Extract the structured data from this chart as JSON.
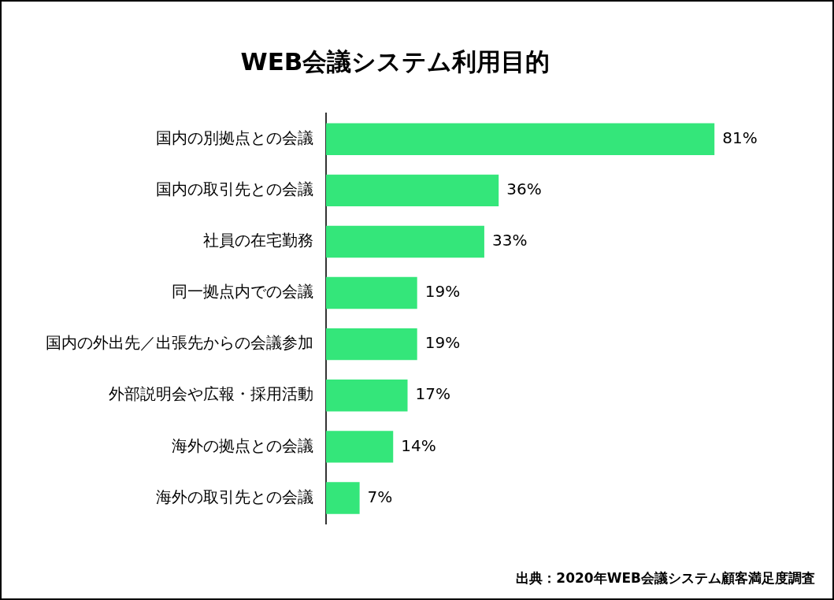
{
  "chart_data": {
    "type": "bar",
    "orientation": "horizontal",
    "title": "WEB会議システム利用目的",
    "categories": [
      "国内の別拠点との会議",
      "国内の取引先との会議",
      "社員の在宅勤務",
      "同一拠点内での会議",
      "国内の外出先／出張先からの会議参加",
      "外部説明会や広報・採用活動",
      "海外の拠点との会議",
      "海外の取引先との会議"
    ],
    "values": [
      81,
      36,
      33,
      19,
      19,
      17,
      14,
      7
    ],
    "value_labels": [
      "81%",
      "36%",
      "33%",
      "19%",
      "19%",
      "17%",
      "14%",
      "7%"
    ],
    "color": "#34e67a",
    "legend": false,
    "grid": false,
    "annotations": [
      "出典：2020年WEB会議システム顧客満足度調査"
    ]
  }
}
